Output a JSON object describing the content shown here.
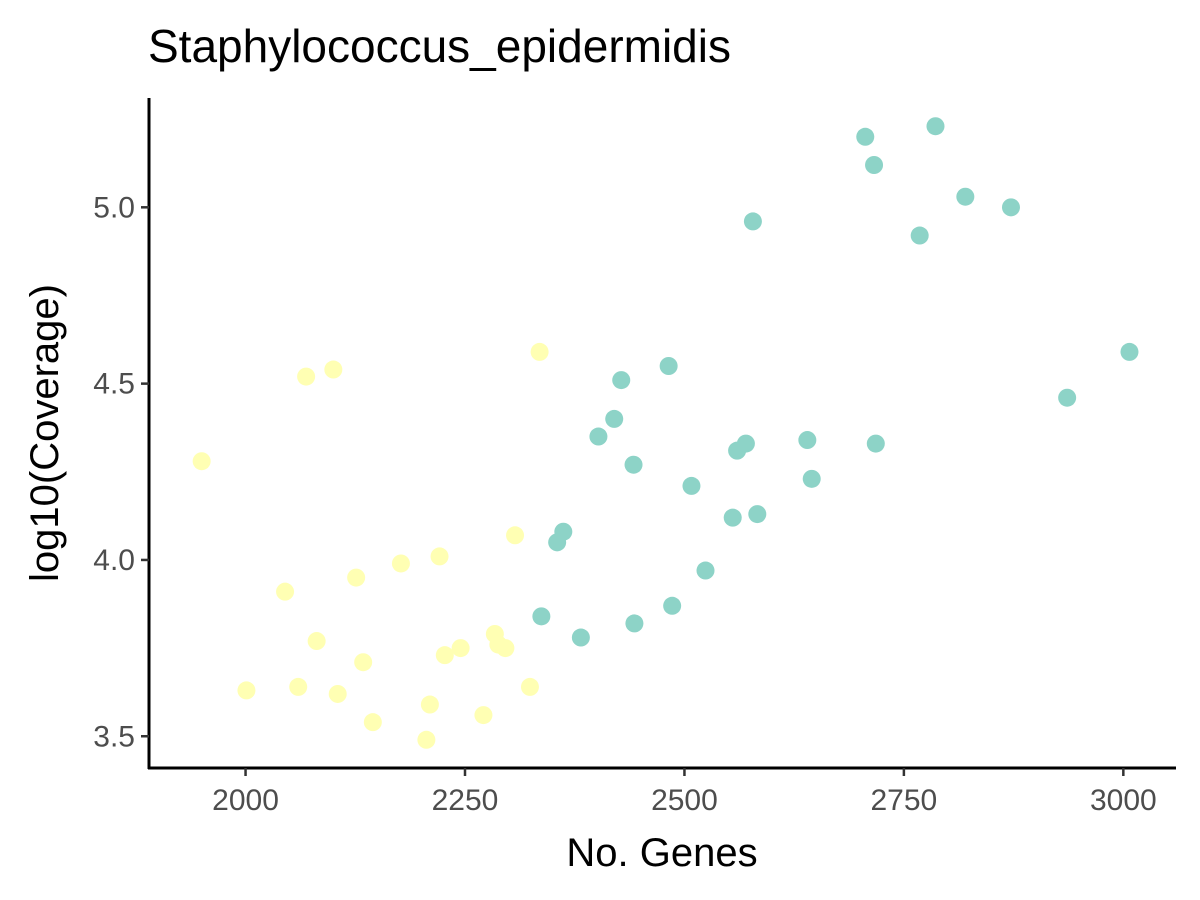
{
  "chart_data": {
    "type": "scatter",
    "title": "Staphylococcus_epidermidis",
    "xlabel": "No. Genes",
    "ylabel": "log10(Coverage)",
    "xlim": [
      1890,
      3060
    ],
    "ylim": [
      3.41,
      5.31
    ],
    "x_ticks": [
      2000,
      2250,
      2500,
      2750,
      3000
    ],
    "y_ticks": [
      3.5,
      4.0,
      4.5,
      5.0
    ],
    "x_tick_labels": [
      "2000",
      "2250",
      "2500",
      "2750",
      "3000"
    ],
    "y_tick_labels": [
      "3.5",
      "4.0",
      "4.5",
      "5.0"
    ],
    "grid": false,
    "legend": "none",
    "series": [
      {
        "color": "#ffffb3",
        "points": [
          [
            1950,
            4.28
          ],
          [
            2001,
            3.63
          ],
          [
            2045,
            3.91
          ],
          [
            2060,
            3.64
          ],
          [
            2069,
            4.52
          ],
          [
            2081,
            3.77
          ],
          [
            2100,
            4.54
          ],
          [
            2105,
            3.62
          ],
          [
            2126,
            3.95
          ],
          [
            2134,
            3.71
          ],
          [
            2145,
            3.54
          ],
          [
            2177,
            3.99
          ],
          [
            2206,
            3.49
          ],
          [
            2210,
            3.59
          ],
          [
            2221,
            4.01
          ],
          [
            2227,
            3.73
          ],
          [
            2245,
            3.75
          ],
          [
            2271,
            3.56
          ],
          [
            2284,
            3.79
          ],
          [
            2288,
            3.76
          ],
          [
            2296,
            3.75
          ],
          [
            2307,
            4.07
          ],
          [
            2324,
            3.64
          ],
          [
            2335,
            4.59
          ]
        ]
      },
      {
        "color": "#8dd3c7",
        "points": [
          [
            2337,
            3.84
          ],
          [
            2355,
            4.05
          ],
          [
            2362,
            4.08
          ],
          [
            2382,
            3.78
          ],
          [
            2402,
            4.35
          ],
          [
            2420,
            4.4
          ],
          [
            2428,
            4.51
          ],
          [
            2442,
            4.27
          ],
          [
            2443,
            3.82
          ],
          [
            2482,
            4.55
          ],
          [
            2486,
            3.87
          ],
          [
            2508,
            4.21
          ],
          [
            2524,
            3.97
          ],
          [
            2555,
            4.12
          ],
          [
            2560,
            4.31
          ],
          [
            2570,
            4.33
          ],
          [
            2578,
            4.96
          ],
          [
            2583,
            4.13
          ],
          [
            2640,
            4.34
          ],
          [
            2645,
            4.23
          ],
          [
            2706,
            5.2
          ],
          [
            2716,
            5.12
          ],
          [
            2718,
            4.33
          ],
          [
            2768,
            4.92
          ],
          [
            2786,
            5.23
          ],
          [
            2820,
            5.03
          ],
          [
            2872,
            5.0
          ],
          [
            2936,
            4.46
          ],
          [
            3007,
            4.59
          ]
        ]
      }
    ]
  }
}
